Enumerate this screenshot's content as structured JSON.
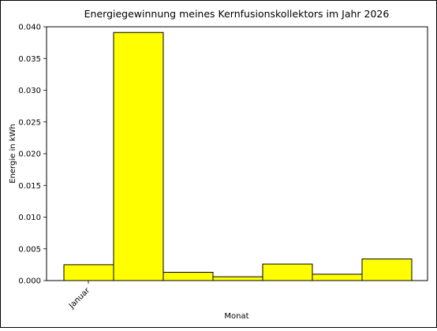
{
  "chart_data": {
    "type": "bar",
    "title": "Energiegewinnung meines Kernfusionskollektors im Jahr 2026",
    "xlabel": "Monat",
    "ylabel": "Energie in kWh",
    "ylim": [
      0,
      0.04
    ],
    "yticks": [
      "0.000",
      "0.005",
      "0.010",
      "0.015",
      "0.020",
      "0.025",
      "0.030",
      "0.035",
      "0.040"
    ],
    "xtick_label": "Januar",
    "values": [
      0.0025,
      0.0391,
      0.0013,
      0.0006,
      0.0026,
      0.001,
      0.0034
    ],
    "bar_color": "#ffff00",
    "edge_color": "#000000",
    "grid": false,
    "legend": "none"
  }
}
